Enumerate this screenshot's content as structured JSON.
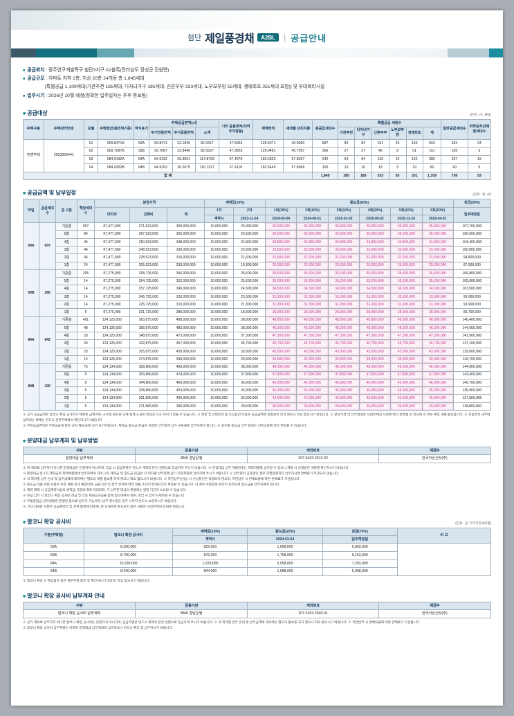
{
  "theme": {
    "bullet": "■",
    "accent_teal": "#14707f",
    "navy": "#16334d",
    "highlight_pink": "#c43b8a",
    "table_header_bg": "#d9e5ee"
  },
  "header": {
    "title_prefix": "첨단",
    "title_main": "제일풍경채",
    "badge": "A2BL",
    "divider": "|",
    "subtitle": "공급안내"
  },
  "intro": {
    "items": [
      {
        "label": "공급위치",
        "text": ": 광주연구개발특구 첨단3지구 A2블록(전라남도 장성군 진원면)"
      },
      {
        "label": "공급규모",
        "text": ": 아파트 지하 2층, 지상 20층 24개동 총 1,845세대"
      },
      {
        "label": "",
        "text": "[특별공급 1,109세대(기관추천 185세대, 다자녀가구 185세대, 신혼부부 333세대, 노부모부양 55세대, 생애최초 351세대 포함)] 및 부대복리시설"
      },
      {
        "label": "입주시기",
        "text": ": 2026년 10월 예정(정확한 입주일자는 추후 통보됨)"
      }
    ]
  },
  "supply": {
    "title": "공급대상",
    "unit": "(단위 : ㎡, 세대)",
    "head": [
      [
        {
          "t": "주택구분",
          "rs": 2
        },
        {
          "t": "주택관리번호",
          "rs": 2
        },
        {
          "t": "모델",
          "rs": 2
        },
        {
          "t": "주택형(전용면적기준)",
          "rs": 2
        },
        {
          "t": "약식표기",
          "rs": 2
        },
        {
          "t": "주택공급면적(㎡)",
          "cs": 3
        },
        {
          "t": "기타 공용면적(지하주차장등)",
          "rs": 2
        },
        {
          "t": "계약면적",
          "rs": 2
        },
        {
          "t": "세대별 대지지분",
          "rs": 2
        },
        {
          "t": "총공급세대수",
          "rs": 2
        },
        {
          "t": "특별공급 세대수",
          "cs": 6
        },
        {
          "t": "일반공급세대수",
          "rs": 2
        },
        {
          "t": "최하층우선배정세대수",
          "rs": 2
        }
      ],
      [
        "주거전용면적",
        "주거공용면적",
        "소계",
        "기관추천",
        "다자녀가구",
        "신혼부부",
        "노부모부양",
        "생애최초",
        "계"
      ]
    ],
    "rows": [
      {
        "cells": [
          {
            "t": "민영주택",
            "rs": 4
          },
          {
            "t": "2023000441",
            "rs": 4
          },
          "01",
          "059.8471A",
          "59A",
          "59.8471",
          "22.1846",
          "82.0317",
          "47.5053",
          "129.5371",
          "40.8000",
          "837",
          "84",
          "84",
          "151",
          "25",
          "159",
          "503",
          "334",
          "24"
        ]
      },
      [
        "02",
        "059.7087B",
        "59B",
        "59.7087",
        "22.8440",
        "82.5527",
        "47.3955",
        "129.9481",
        "40.7057",
        "266",
        "27",
        "27",
        "48",
        "8",
        "51",
        "161",
        "105",
        "5"
      ],
      [
        "03",
        "084.9192A",
        "84A",
        "84.9192",
        "29.9561",
        "114.8753",
        "67.4070",
        "182.2823",
        "57.8927",
        "642",
        "64",
        "64",
        "116",
        "19",
        "122",
        "385",
        "257",
        "19"
      ],
      [
        "04",
        "084.9252B",
        "84B",
        "84.9252",
        "30.2075",
        "115.1327",
        "67.4118",
        "182.5445",
        "57.8968",
        "100",
        "10",
        "10",
        "18",
        "3",
        "19",
        "60",
        "40",
        "5"
      ],
      {
        "cls": "total",
        "cells": [
          {
            "t": "합 계",
            "cs": 11
          },
          "1,845",
          "185",
          "185",
          "333",
          "55",
          "351",
          "1,109",
          "736",
          "53"
        ]
      }
    ]
  },
  "price": {
    "title": "공급금액 및 납부일정",
    "unit": "(단위 : 원, ㎡)",
    "head": [
      [
        {
          "t": "타입",
          "rs": 3
        },
        {
          "t": "공급세대수",
          "rs": 3
        },
        {
          "t": "층 구분",
          "rs": 3
        },
        {
          "t": "해당세대수",
          "rs": 3
        },
        {
          "t": "분양가격",
          "cs": 3
        },
        {
          "t": "계약금(10%)",
          "cs": 2
        },
        {
          "t": "중도금(60%)",
          "cs": 6
        },
        {
          "t": "잔금(30%)"
        }
      ],
      [
        {
          "t": "대지비",
          "rs": 2
        },
        {
          "t": "건축비",
          "rs": 2
        },
        {
          "t": "계",
          "rs": 2
        },
        "1차",
        "2차",
        "1회(10%)",
        "2회(10%)",
        "3회(10%)",
        "4회(10%)",
        "5회(10%)",
        "6회(10%)",
        {
          "t": "입주예정일",
          "rs": 2
        }
      ],
      [
        "계약시",
        "2023-11-24",
        "2024-03-04",
        "2024-08-01",
        "2025-01-02",
        "2025-05-02",
        "2025-12-10",
        "2026-04-01"
      ]
    ],
    "rows": [
      {
        "cls": "grp",
        "cells": [
          {
            "t": "59A",
            "rs": 6,
            "cl": "typ"
          },
          {
            "t": "837",
            "rs": 6,
            "cl": "typ"
          },
          {
            "t": "기준층",
            "cl": "flo"
          },
          "597",
          "87,477,000",
          "271,523,000",
          "359,000,000",
          "10,000,000",
          "25,900,000",
          "35,900,000",
          "35,900,000",
          "35,900,000",
          "35,900,000",
          "35,900,000",
          "35,900,000",
          "107,700,000"
        ]
      },
      [
        {
          "t": "5층",
          "cl": "flo"
        },
        "84",
        "87,477,000",
        "267,523,000",
        "355,000,000",
        "10,000,000",
        "25,500,000",
        "35,500,000",
        "35,500,000",
        "35,500,000",
        "35,500,000",
        "35,500,000",
        "35,500,000",
        "106,500,000"
      ],
      [
        {
          "t": "4층",
          "cl": "flo"
        },
        "44",
        "87,477,000",
        "260,523,000",
        "348,000,000",
        "10,000,000",
        "24,800,000",
        "34,800,000",
        "34,800,000",
        "34,800,000",
        "34,800,000",
        "34,800,000",
        "34,800,000",
        "104,400,000"
      ],
      [
        {
          "t": "3층",
          "cl": "flo"
        },
        "44",
        "87,477,000",
        "248,523,000",
        "336,000,000",
        "10,000,000",
        "23,600,000",
        "33,600,000",
        "33,600,000",
        "33,600,000",
        "33,600,000",
        "33,600,000",
        "33,600,000",
        "100,800,000"
      ],
      [
        {
          "t": "2층",
          "cl": "flo"
        },
        "44",
        "87,477,000",
        "228,523,000",
        "316,000,000",
        "10,000,000",
        "21,600,000",
        "31,600,000",
        "31,600,000",
        "31,600,000",
        "31,600,000",
        "31,600,000",
        "31,600,000",
        "94,800,000"
      ],
      [
        {
          "t": "1층",
          "cl": "flo"
        },
        "24",
        "87,477,000",
        "205,523,000",
        "293,000,000",
        "10,000,000",
        "19,300,000",
        "29,300,000",
        "29,300,000",
        "29,300,000",
        "29,300,000",
        "29,300,000",
        "29,300,000",
        "87,900,000"
      ],
      {
        "cls": "grp",
        "cells": [
          {
            "t": "59B",
            "rs": 6,
            "cl": "typ"
          },
          {
            "t": "266",
            "rs": 6,
            "cl": "typ"
          },
          {
            "t": "기준층",
            "cl": "flo"
          },
          "205",
          "87,275,000",
          "268,725,000",
          "356,000,000",
          "10,000,000",
          "25,600,000",
          "35,600,000",
          "35,600,000",
          "35,600,000",
          "35,600,000",
          "35,600,000",
          "35,600,000",
          "106,800,000"
        ]
      },
      [
        {
          "t": "5층",
          "cl": "flo"
        },
        "14",
        "87,275,000",
        "264,725,000",
        "352,000,000",
        "10,000,000",
        "25,200,000",
        "35,200,000",
        "35,200,000",
        "35,200,000",
        "35,200,000",
        "35,200,000",
        "35,200,000",
        "105,600,000"
      ],
      [
        {
          "t": "4층",
          "cl": "flo"
        },
        "14",
        "87,275,000",
        "257,725,000",
        "345,000,000",
        "10,000,000",
        "24,500,000",
        "34,500,000",
        "34,500,000",
        "34,500,000",
        "34,500,000",
        "34,500,000",
        "34,500,000",
        "103,500,000"
      ],
      [
        {
          "t": "3층",
          "cl": "flo"
        },
        "14",
        "87,275,000",
        "245,725,000",
        "333,000,000",
        "10,000,000",
        "23,300,000",
        "33,300,000",
        "33,300,000",
        "33,300,000",
        "33,300,000",
        "33,300,000",
        "33,300,000",
        "99,900,000"
      ],
      [
        {
          "t": "2층",
          "cl": "flo"
        },
        "14",
        "87,275,000",
        "225,725,000",
        "313,000,000",
        "10,000,000",
        "21,300,000",
        "31,300,000",
        "31,300,000",
        "31,300,000",
        "31,300,000",
        "31,300,000",
        "31,300,000",
        "93,900,000"
      ],
      [
        {
          "t": "1층",
          "cl": "flo"
        },
        "5",
        "87,275,000",
        "201,725,000",
        "289,000,000",
        "10,000,000",
        "18,900,000",
        "28,900,000",
        "28,900,000",
        "28,900,000",
        "28,900,000",
        "28,900,000",
        "28,900,000",
        "86,700,000"
      ],
      {
        "cls": "grp",
        "cells": [
          {
            "t": "84A",
            "rs": 6,
            "cl": "typ"
          },
          {
            "t": "642",
            "rs": 6,
            "cl": "typ"
          },
          {
            "t": "기준층",
            "cl": "flo"
          },
          "491",
          "124,125,000",
          "363,875,000",
          "488,000,000",
          "10,000,000",
          "38,800,000",
          "48,800,000",
          "48,800,000",
          "48,800,000",
          "48,800,000",
          "48,800,000",
          "48,800,000",
          "146,400,000"
        ]
      },
      [
        {
          "t": "5층",
          "cl": "flo"
        },
        "48",
        "124,125,000",
        "358,875,000",
        "483,000,000",
        "10,000,000",
        "38,300,000",
        "48,300,000",
        "48,300,000",
        "48,300,000",
        "48,300,000",
        "48,300,000",
        "48,300,000",
        "144,900,000"
      ],
      [
        {
          "t": "4층",
          "cl": "flo"
        },
        "33",
        "124,125,000",
        "348,875,000",
        "473,000,000",
        "10,000,000",
        "37,300,000",
        "47,300,000",
        "47,300,000",
        "47,300,000",
        "47,300,000",
        "47,300,000",
        "47,300,000",
        "141,900,000"
      ],
      [
        {
          "t": "3층",
          "cl": "flo"
        },
        "33",
        "124,125,000",
        "332,875,000",
        "457,000,000",
        "10,000,000",
        "35,700,000",
        "45,700,000",
        "45,700,000",
        "45,700,000",
        "45,700,000",
        "45,700,000",
        "45,700,000",
        "137,100,000"
      ],
      [
        {
          "t": "2층",
          "cl": "flo"
        },
        "23",
        "124,125,000",
        "305,875,000",
        "430,000,000",
        "10,000,000",
        "33,000,000",
        "43,000,000",
        "43,000,000",
        "43,000,000",
        "43,000,000",
        "43,000,000",
        "43,000,000",
        "129,000,000"
      ],
      [
        {
          "t": "1층",
          "cl": "flo"
        },
        "14",
        "124,125,000",
        "274,875,000",
        "399,000,000",
        "10,000,000",
        "29,900,000",
        "39,900,000",
        "39,900,000",
        "39,900,000",
        "39,900,000",
        "39,900,000",
        "39,900,000",
        "119,700,000"
      ],
      {
        "cls": "grp",
        "cells": [
          {
            "t": "84B",
            "rs": 6,
            "cl": "typ"
          },
          {
            "t": "100",
            "rs": 6,
            "cl": "typ"
          },
          {
            "t": "기준층",
            "cl": "flo"
          },
          "75",
          "124,134,000",
          "358,866,000",
          "483,000,000",
          "10,000,000",
          "38,300,000",
          "48,300,000",
          "48,300,000",
          "48,300,000",
          "48,300,000",
          "48,300,000",
          "48,300,000",
          "144,900,000"
        ]
      },
      [
        {
          "t": "5층",
          "cl": "flo"
        },
        "5",
        "124,134,000",
        "353,866,000",
        "478,000,000",
        "10,000,000",
        "37,800,000",
        "47,800,000",
        "47,800,000",
        "47,800,000",
        "47,800,000",
        "47,800,000",
        "47,800,000",
        "143,400,000"
      ],
      [
        {
          "t": "4층",
          "cl": "flo"
        },
        "5",
        "124,134,000",
        "344,866,000",
        "469,000,000",
        "10,000,000",
        "36,900,000",
        "46,900,000",
        "46,900,000",
        "46,900,000",
        "46,900,000",
        "46,900,000",
        "46,900,000",
        "140,700,000"
      ],
      [
        {
          "t": "3층",
          "cl": "flo"
        },
        "5",
        "124,134,000",
        "328,866,000",
        "453,000,000",
        "10,000,000",
        "35,300,000",
        "45,300,000",
        "45,300,000",
        "45,300,000",
        "45,300,000",
        "45,300,000",
        "45,300,000",
        "135,900,000"
      ],
      [
        {
          "t": "2층",
          "cl": "flo"
        },
        "5",
        "124,134,000",
        "301,866,000",
        "426,000,000",
        "10,000,000",
        "32,600,000",
        "42,600,000",
        "42,600,000",
        "42,600,000",
        "42,600,000",
        "42,600,000",
        "42,600,000",
        "127,800,000"
      ],
      [
        {
          "t": "1층",
          "cl": "flo"
        },
        "5",
        "124,134,000",
        "271,866,000",
        "396,000,000",
        "10,000,000",
        "29,600,000",
        "39,600,000",
        "39,600,000",
        "39,600,000",
        "39,600,000",
        "39,600,000",
        "39,600,000",
        "118,800,000"
      ]
    ],
    "notes": [
      "※ 상기 공급금액은 발코니 확장 공사비가 제외된 금액이며, 소수점 절사로 인해 실제 소요된 비용과 다소 차이가 있을 수 있습니다. ※ 분양 및 인테리어 등 유상옵션 비용은 공급금액에 포함되어 있지 않으니 착오 없으시기 바랍니다. ※ 분양가격 및 납부일정은 사업주체의 사정에 따라 변경될 수 있으며 이 경우 추후 개별 통보합니다. ※ 전용면적 내부에 설치되는 벽체는 반드시 견본주택에서 확인하시기 바랍니다.",
      "※ 주택공급면적은 주택공급에 관한 규칙 제60조에 의거 표기하였으며, 계약금·중도금·잔금은 지정된 납부일에 상기 구분대로 납부하여야 합니다. ※ 층수별 중도금 납부 일자는 건축공정에 따라 변동될 수 있습니다."
    ]
  },
  "pay_account": {
    "title": "분양대금 납부계좌 및 납부방법",
    "head": [
      [
        "구분",
        "금융기관",
        "계좌번호",
        "예금주"
      ]
    ],
    "rows": [
      [
        "분양대금 납부계좌",
        "BNK 경남은행",
        "207-0163-2612-02",
        "한국자산신탁(주)"
      ]
    ],
    "notes": [
      "※ 위 계좌로 납부하지 아니한 분양대금은 인정하지 아니하며, 입금 시 입금자명은 반드시 계약자 본인 성명으로 입금하여 주시기 바랍니다. ※ 분양대금 납부 계좌번호는 계약자별로 상이할 수 있으니 계약 시 안내받은 계좌를 확인하시기 바랍니다.",
      "※ 분양대금 중 1차 계약금은 계약체결일에 납부하여야 하며, 2차 계약금 및 중도금·잔금은 각 회차별 납부일에 상기 지정계좌로 납부하여 주시기 바랍니다. ※ 납부일이 공휴일인 경우 익영업일까지 납부하시면 연체료가 부과되지 않습니다.",
      "※ 각 회차별 납부 안내 및 납부금액에 대하여는 별도의 개별 통보를 하지 않으니 착오 없으시기 바랍니다. ※ 자진납부(선납) 시 선납할인은 적용되지 않으며, 지연납부 시 연체요율에 따른 연체료가 가산됩니다.",
      "※ 중도금 대출 관련 사항은 추후 개별 안내 예정이며, 금융기관 및 정부 정책에 따라 대출 조건이 변경되거나 제한될 수 있습니다. 이 경우 수분양자 본인이 자력으로 중도금을 납부하여야 합니다.",
      "※ 계약 해제 시 공급계약서상의 위약금 규정에 따라 처리되며, 기 납부한 대금의 환불에는 일정 기간이 소요될 수 있습니다.",
      "※ 잔금 납부 시 발코니 확장 공사비 잔금 및 각종 제세공과금을 함께 정산하여야 하며, 미납 시 입주가 제한될 수 있습니다.",
      "※ 무통장입금·인터넷뱅킹·폰뱅킹 등으로 납부가 가능하며, 납부 영수증은 입주 시까지 반드시 보관하시기 바랍니다.",
      "※ 기타 자세한 사항은 공급계약서 및 관계 법령에 따르며, 본 안내문에 명시되지 않은 사항은 사업주체의 안내에 따릅니다."
    ]
  },
  "balcony": {
    "title": "발코니 확장 공사비",
    "unit": "(단위 : 원, 부가가치세포함)",
    "head": [
      [
        {
          "t": "구분(주택형)",
          "rs": 2
        },
        {
          "t": "발코니 확장 공사비",
          "rs": 2
        },
        {
          "t": "계약금(10%)"
        },
        {
          "t": "중도금(20%)"
        },
        {
          "t": "잔금(70%)"
        },
        {
          "t": "비 고",
          "rs": 2
        }
      ],
      [
        "계약시",
        "2024-03-04",
        "입주예정일"
      ]
    ],
    "rows": [
      {
        "cells": [
          "59A",
          "8,290,000",
          "829,000",
          "1,658,000",
          "5,803,000",
          {
            "t": "",
            "rs": 4
          }
        ]
      },
      [
        "59B",
        "8,790,000",
        "879,000",
        "1,758,000",
        "6,153,000"
      ],
      [
        "84A",
        "10,290,000",
        "1,029,000",
        "2,058,000",
        "7,203,000"
      ],
      [
        "84B",
        "8,440,000",
        "844,000",
        "1,688,000",
        "5,908,000"
      ]
    ],
    "notes": [
      "※ 발코니 확장 시 제공품목 등은 견본주택 방문 후 확인하시기 바라며, 착오 없으시기 바랍니다."
    ]
  },
  "balcony_account": {
    "title": "발코니 확장 공사비 납부계좌 안내",
    "head": [
      [
        "구분",
        "금융기관",
        "계좌번호",
        "예금주"
      ]
    ],
    "rows": [
      [
        "발코니 확장 공사비 납부계좌",
        "BNK 경남은행",
        "207-0163-2603-01",
        "한국자산신탁(주)"
      ]
    ],
    "notes": [
      "※ 상기 계좌로 납부하지 아니한 발코니 확장 공사비는 인정하지 아니하며, 입금자명은 반드시 계약자 본인 성명으로 입금하여 주시기 바랍니다. ※ 각 회차별 납부 안내 및 납부금액에 대하여는 별도의 통보를 하지 않으니 착오 없으시기 바랍니다. ※ 지연납부 시 연체요율에 따른 연체료가 가산됩니다.",
      "※ 발코니 확장 공사비 납부계좌는 아파트 분양대금 납부계좌와 상이하오니 반드시 확인 후 납부하시기 바랍니다."
    ]
  }
}
